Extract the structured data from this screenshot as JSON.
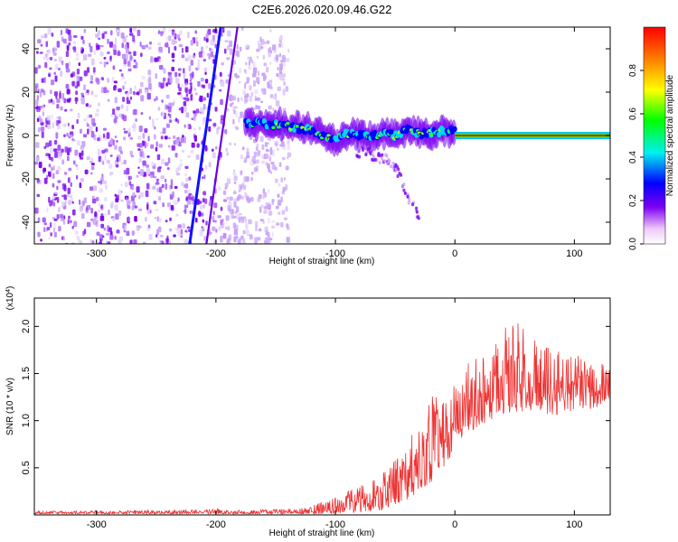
{
  "figure_title": "C2E6.2026.020.09.46.G22",
  "chart_data": [
    {
      "type": "heatmap",
      "xlabel": "Height of straight line (km)",
      "ylabel": "Frequency (Hz)",
      "xlim": [
        -352,
        130
      ],
      "ylim": [
        -50,
        50
      ],
      "x_ticks": [
        -300,
        -200,
        -100,
        0,
        100
      ],
      "y_ticks": [
        -40,
        -20,
        0,
        20,
        40
      ],
      "colorbar_label": "Normalized spectral amplitude",
      "colorbar_range": [
        0,
        1
      ],
      "colorbar_ticks": [
        0.0,
        0.2,
        0.4,
        0.6,
        0.8
      ],
      "noise_region_x": [
        -352,
        -140
      ],
      "diagonal_streak": {
        "x": [
          -222,
          -196
        ],
        "y": [
          -50,
          50
        ]
      },
      "track": {
        "x": [
          -175,
          -150,
          -125,
          -110,
          -100,
          -90,
          -80,
          -70,
          -60,
          -50,
          -40,
          -30,
          -20,
          -10,
          0,
          20,
          60,
          100,
          130
        ],
        "y": [
          6,
          5,
          3,
          0,
          -2,
          1,
          0,
          -1,
          2,
          0,
          3,
          1,
          1,
          2,
          2,
          1,
          0,
          0,
          0
        ]
      },
      "tail_curve": {
        "x": [
          -85,
          -70,
          -60,
          -50,
          -45,
          -40,
          -30
        ],
        "y": [
          -6,
          -8,
          -10,
          -15,
          -20,
          -28,
          -38
        ]
      }
    },
    {
      "type": "line",
      "xlabel": "Height of straight line (km)",
      "ylabel": "SNR (10 * v/v)",
      "scale_label": "(x10",
      "scale_exponent": "4",
      "scale_suffix": ")",
      "xlim": [
        -352,
        130
      ],
      "ylim": [
        0,
        2.3
      ],
      "x_ticks": [
        -300,
        -200,
        -100,
        0,
        100
      ],
      "y_ticks": [
        0.5,
        1.0,
        1.5,
        2.0
      ],
      "color": "#ee3333",
      "envelope": {
        "x": [
          -352,
          -250,
          -200,
          -190,
          -150,
          -120,
          -100,
          -80,
          -60,
          -50,
          -40,
          -30,
          -20,
          -10,
          0,
          10,
          30,
          50,
          80,
          100,
          130
        ],
        "low": [
          0.01,
          0.01,
          0.01,
          0.01,
          0.01,
          0.01,
          0.01,
          0.02,
          0.05,
          0.1,
          0.15,
          0.25,
          0.35,
          0.45,
          0.7,
          0.85,
          1.0,
          1.1,
          1.05,
          1.1,
          1.15
        ],
        "high": [
          0.04,
          0.05,
          0.07,
          0.05,
          0.06,
          0.1,
          0.2,
          0.3,
          0.45,
          0.6,
          0.8,
          1.0,
          1.25,
          1.35,
          1.45,
          1.6,
          1.8,
          2.1,
          1.8,
          1.7,
          1.6
        ]
      }
    }
  ]
}
